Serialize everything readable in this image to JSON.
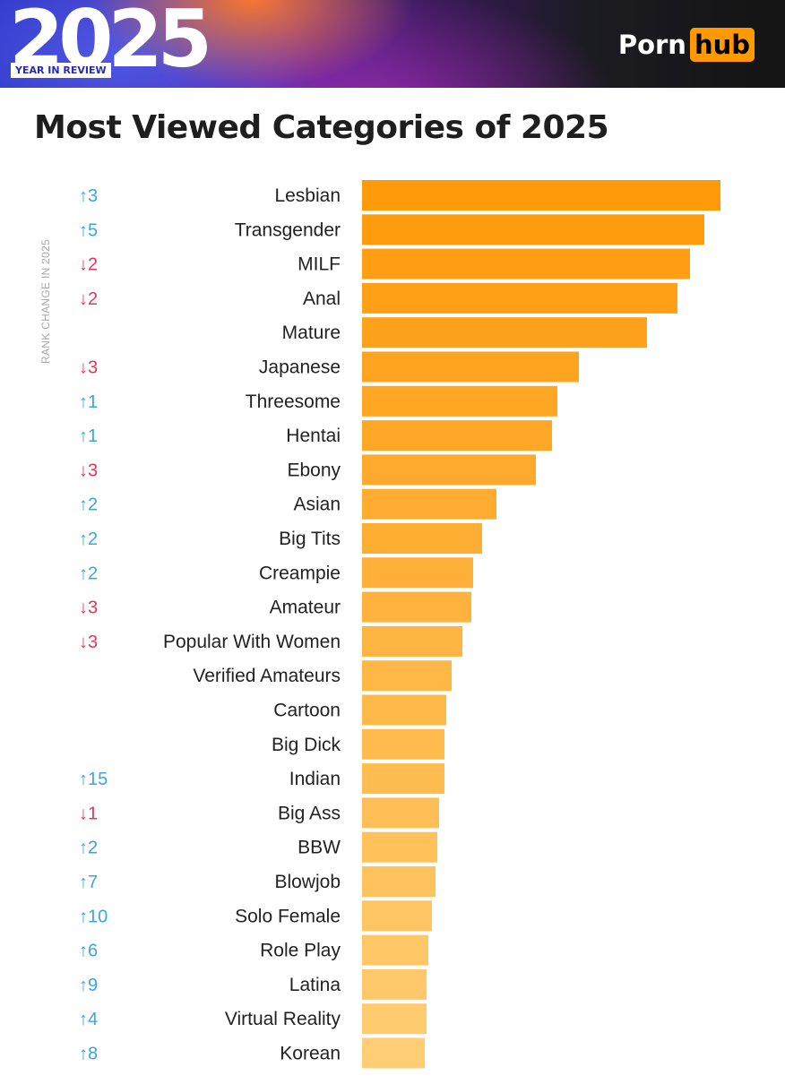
{
  "header": {
    "year": "2025",
    "subtitle": "YEAR IN REVIEW",
    "logo_left": "Porn",
    "logo_right": "hub"
  },
  "colors": {
    "up": "#3aa6dc",
    "down": "#e0385a",
    "bar_top": "#ff9a0a",
    "bar_bottom": "#ffcd73",
    "logo_accent": "#ff9900"
  },
  "chart_data": {
    "type": "bar",
    "orientation": "horizontal",
    "title": "Most Viewed Categories of 2025",
    "rank_change_axis_label": "RANK CHANGE IN 2025",
    "x_axis_shown": false,
    "grid": false,
    "xlim": [
      0,
      100
    ],
    "categories": [
      "Lesbian",
      "Transgender",
      "MILF",
      "Anal",
      "Mature",
      "Japanese",
      "Threesome",
      "Hentai",
      "Ebony",
      "Asian",
      "Big Tits",
      "Creampie",
      "Amateur",
      "Popular With Women",
      "Verified Amateurs",
      "Cartoon",
      "Big Dick",
      "Indian",
      "Big Ass",
      "BBW",
      "Blowjob",
      "Solo Female",
      "Role Play",
      "Latina",
      "Virtual Reality",
      "Korean"
    ],
    "values": [
      100,
      95.5,
      91.5,
      88,
      79.5,
      60.5,
      54.5,
      53,
      48.5,
      37.5,
      33.5,
      31,
      30.5,
      28,
      25,
      23.5,
      23,
      23,
      21.5,
      21,
      20.5,
      19.5,
      18.5,
      18,
      18,
      17.5
    ],
    "rank_change": [
      "↑3",
      "↑5",
      "↓2",
      "↓2",
      "",
      "↓3",
      "↑1",
      "↑1",
      "↓3",
      "↑2",
      "↑2",
      "↑2",
      "↓3",
      "↓3",
      "",
      "",
      "",
      "↑15",
      "↓1",
      "↑2",
      "↑7",
      "↑10",
      "↑6",
      "↑9",
      "↑4",
      "↑8"
    ]
  }
}
